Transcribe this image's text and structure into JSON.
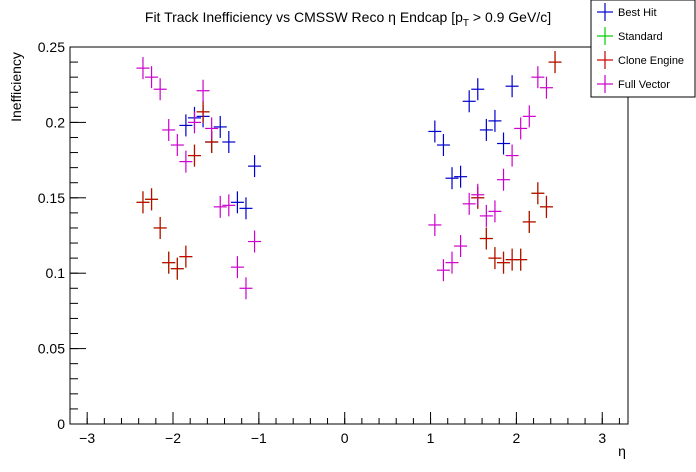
{
  "chart_data": {
    "type": "scatter",
    "title": "Fit Track Inefficiency vs CMSSW Reco η Endcap [p_T > 0.9 GeV/c]",
    "xlabel": "η",
    "ylabel": "Inefficiency",
    "xlim": [
      -3.2,
      3.3
    ],
    "ylim": [
      0,
      0.25
    ],
    "xticks": [
      -3,
      -2,
      -1,
      0,
      1,
      2,
      3
    ],
    "yticks": [
      0,
      0.05,
      0.1,
      0.15,
      0.2,
      0.25
    ],
    "ytick_labels": [
      "0",
      "0.05",
      "0.1",
      "0.15",
      "0.2",
      "0.25"
    ],
    "grid": false,
    "legend_position": "top-right",
    "series": [
      {
        "name": "Best Hit",
        "color": "#0000cc",
        "points": [
          [
            -1.85,
            0.198
          ],
          [
            -1.75,
            0.203
          ],
          [
            -1.65,
            0.204
          ],
          [
            -1.55,
            0.187
          ],
          [
            -1.45,
            0.197
          ],
          [
            -1.35,
            0.187
          ],
          [
            -1.25,
            0.147
          ],
          [
            -1.15,
            0.143
          ],
          [
            -1.05,
            0.171
          ],
          [
            1.05,
            0.194
          ],
          [
            1.15,
            0.185
          ],
          [
            1.25,
            0.163
          ],
          [
            1.35,
            0.164
          ],
          [
            1.45,
            0.214
          ],
          [
            1.55,
            0.222
          ],
          [
            1.65,
            0.195
          ],
          [
            1.75,
            0.201
          ],
          [
            1.85,
            0.186
          ],
          [
            1.95,
            0.224
          ]
        ]
      },
      {
        "name": "Standard",
        "color": "#00cc00",
        "points": [
          [
            -2.35,
            0.147
          ],
          [
            -2.25,
            0.149
          ],
          [
            -2.15,
            0.13
          ],
          [
            -2.05,
            0.107
          ],
          [
            -1.95,
            0.103
          ],
          [
            -1.85,
            0.111
          ],
          [
            -1.75,
            0.178
          ],
          [
            -1.65,
            0.207
          ],
          [
            -1.55,
            0.187
          ],
          [
            1.55,
            0.15
          ],
          [
            1.65,
            0.123
          ],
          [
            1.75,
            0.11
          ],
          [
            1.85,
            0.107
          ],
          [
            1.95,
            0.109
          ],
          [
            2.05,
            0.109
          ],
          [
            2.15,
            0.134
          ],
          [
            2.25,
            0.153
          ],
          [
            2.35,
            0.144
          ],
          [
            2.45,
            0.24
          ]
        ]
      },
      {
        "name": "Clone Engine",
        "color": "#cc0000",
        "points": [
          [
            -2.35,
            0.147
          ],
          [
            -2.25,
            0.149
          ],
          [
            -2.15,
            0.13
          ],
          [
            -2.05,
            0.107
          ],
          [
            -1.95,
            0.103
          ],
          [
            -1.85,
            0.111
          ],
          [
            -1.75,
            0.178
          ],
          [
            -1.65,
            0.207
          ],
          [
            -1.55,
            0.187
          ],
          [
            1.55,
            0.15
          ],
          [
            1.65,
            0.123
          ],
          [
            1.75,
            0.11
          ],
          [
            1.85,
            0.107
          ],
          [
            1.95,
            0.109
          ],
          [
            2.05,
            0.109
          ],
          [
            2.15,
            0.134
          ],
          [
            2.25,
            0.153
          ],
          [
            2.35,
            0.144
          ],
          [
            2.45,
            0.24
          ]
        ]
      },
      {
        "name": "Full Vector",
        "color": "#cc00cc",
        "points": [
          [
            -2.35,
            0.236
          ],
          [
            -2.25,
            0.23
          ],
          [
            -2.15,
            0.222
          ],
          [
            -2.05,
            0.195
          ],
          [
            -1.95,
            0.185
          ],
          [
            -1.85,
            0.174
          ],
          [
            -1.75,
            0.2
          ],
          [
            -1.65,
            0.221
          ],
          [
            -1.55,
            0.196
          ],
          [
            -1.45,
            0.144
          ],
          [
            -1.35,
            0.145
          ],
          [
            -1.25,
            0.104
          ],
          [
            -1.15,
            0.09
          ],
          [
            -1.05,
            0.121
          ],
          [
            1.05,
            0.132
          ],
          [
            1.15,
            0.102
          ],
          [
            1.25,
            0.107
          ],
          [
            1.35,
            0.118
          ],
          [
            1.45,
            0.146
          ],
          [
            1.55,
            0.152
          ],
          [
            1.65,
            0.138
          ],
          [
            1.75,
            0.141
          ],
          [
            1.85,
            0.162
          ],
          [
            1.95,
            0.178
          ],
          [
            2.05,
            0.196
          ],
          [
            2.15,
            0.204
          ],
          [
            2.25,
            0.23
          ],
          [
            2.35,
            0.223
          ]
        ]
      }
    ]
  }
}
